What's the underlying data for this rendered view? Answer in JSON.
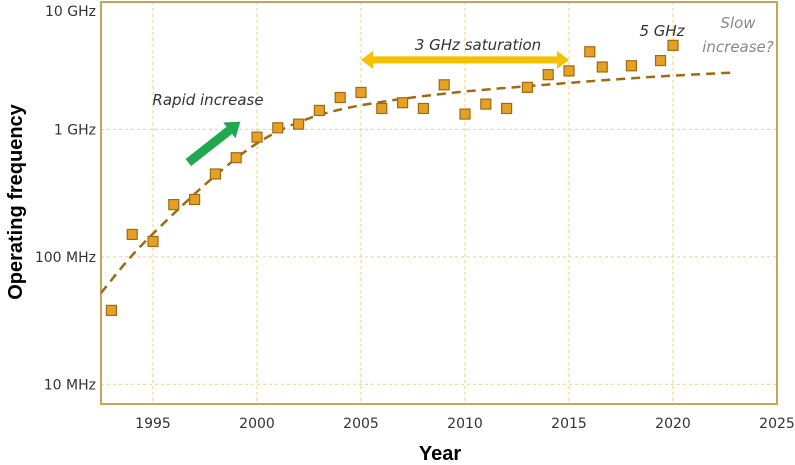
{
  "chart_data": {
    "type": "scatter",
    "title": "",
    "xlabel": "Year",
    "ylabel": "Operating frequency",
    "xlim": [
      1992.5,
      2025
    ],
    "ylim_mhz": [
      7,
      10000
    ],
    "y_scale": "log",
    "x_ticks": [
      1995,
      2000,
      2005,
      2010,
      2015,
      2020,
      2025
    ],
    "y_ticks": [
      {
        "value": 10,
        "label": "10 MHz"
      },
      {
        "value": 100,
        "label": "100 MHz"
      },
      {
        "value": 1000,
        "label": "1 GHz"
      },
      {
        "value": 10000,
        "label": "10 GHz"
      }
    ],
    "grid": true,
    "series": [
      {
        "values": [
          {
            "x": 1993,
            "y": 38
          },
          {
            "x": 1994,
            "y": 150
          },
          {
            "x": 1995,
            "y": 132
          },
          {
            "x": 1996,
            "y": 257
          },
          {
            "x": 1997,
            "y": 282
          },
          {
            "x": 1998,
            "y": 447
          },
          {
            "x": 1999,
            "y": 600
          },
          {
            "x": 2000,
            "y": 870
          },
          {
            "x": 2001,
            "y": 1030
          },
          {
            "x": 2002,
            "y": 1100
          },
          {
            "x": 2003,
            "y": 1410
          },
          {
            "x": 2004,
            "y": 1780
          },
          {
            "x": 2005,
            "y": 1950
          },
          {
            "x": 2006,
            "y": 1460
          },
          {
            "x": 2007,
            "y": 1620
          },
          {
            "x": 2008,
            "y": 1460
          },
          {
            "x": 2009,
            "y": 2240
          },
          {
            "x": 2010,
            "y": 1320
          },
          {
            "x": 2011,
            "y": 1580
          },
          {
            "x": 2012,
            "y": 1460
          },
          {
            "x": 2013,
            "y": 2140
          },
          {
            "x": 2014,
            "y": 2690
          },
          {
            "x": 2015,
            "y": 2880
          },
          {
            "x": 2016,
            "y": 4070
          },
          {
            "x": 2016.6,
            "y": 3090
          },
          {
            "x": 2018,
            "y": 3160
          },
          {
            "x": 2019.4,
            "y": 3470
          },
          {
            "x": 2020,
            "y": 4570
          }
        ]
      }
    ],
    "trend_line": [
      {
        "x": 1992.5,
        "y": 52
      },
      {
        "x": 1994,
        "y": 105
      },
      {
        "x": 1996,
        "y": 220
      },
      {
        "x": 1998,
        "y": 440
      },
      {
        "x": 2000,
        "y": 800
      },
      {
        "x": 2002,
        "y": 1160
      },
      {
        "x": 2004,
        "y": 1450
      },
      {
        "x": 2006,
        "y": 1650
      },
      {
        "x": 2008,
        "y": 1830
      },
      {
        "x": 2010,
        "y": 1990
      },
      {
        "x": 2012,
        "y": 2120
      },
      {
        "x": 2014,
        "y": 2250
      },
      {
        "x": 2016,
        "y": 2390
      },
      {
        "x": 2018,
        "y": 2520
      },
      {
        "x": 2020,
        "y": 2650
      },
      {
        "x": 2023,
        "y": 2800
      }
    ],
    "annotations": {
      "rapid": "Rapid increase",
      "saturation": "3 GHz saturation",
      "five_ghz": "5 GHz",
      "slow_line1": "Slow",
      "slow_line2": "increase?"
    },
    "arrows": {
      "rapid_from": {
        "x": 1996.7,
        "y": 550
      },
      "rapid_to": {
        "x": 1999.2,
        "y": 1150
      },
      "saturation_from": 2005,
      "saturation_to": 2015,
      "saturation_y": 2880
    },
    "colors": {
      "frame": "#c8a35a",
      "grid": "#f2cf7a",
      "marker_fill": "#e5a025",
      "marker_stroke": "#a06a10",
      "trend": "#a06a10",
      "rapid_arrow": "#1fa84f",
      "saturation_arrow": "#f5c000"
    }
  }
}
